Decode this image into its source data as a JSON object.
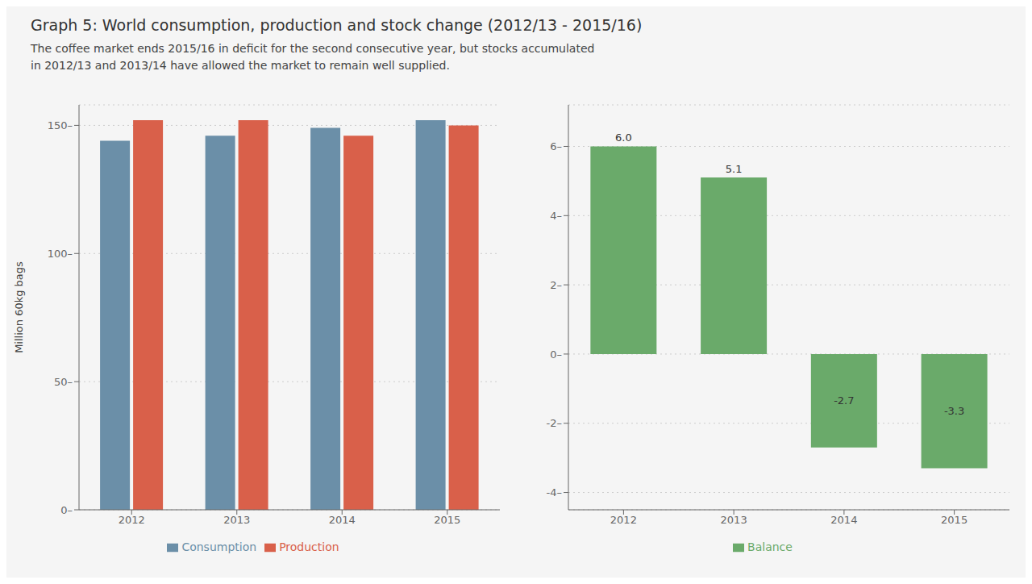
{
  "chart_data": [
    {
      "type": "bar",
      "title": "Graph 5: World consumption, production and stock change (2012/13 - 2015/16)",
      "subtitle": "The coffee market ends 2015/16 in deficit for the second consecutive year, but stocks accumulated\nin 2012/13 and 2013/14 have allowed the market to remain well supplied.",
      "categories": [
        "2012",
        "2013",
        "2014",
        "2015"
      ],
      "series": [
        {
          "name": "Consumption",
          "color": "#6b8fa8",
          "values": [
            144,
            146,
            149,
            152
          ]
        },
        {
          "name": "Production",
          "color": "#d9604a",
          "values": [
            152,
            152,
            146,
            150
          ]
        }
      ],
      "ylabel": "Million 60kg bags",
      "ylim": [
        0,
        158
      ],
      "yticks": [
        {
          "value": 0,
          "label": "0–"
        },
        {
          "value": 50,
          "label": "50–"
        },
        {
          "value": 100,
          "label": "100–"
        },
        {
          "value": 150,
          "label": "150–"
        }
      ],
      "grid": true,
      "legend": "bottom"
    },
    {
      "type": "bar",
      "categories": [
        "2012",
        "2013",
        "2014",
        "2015"
      ],
      "series": [
        {
          "name": "Balance",
          "color": "#6aaa6a",
          "values": [
            6.0,
            5.1,
            -2.7,
            -3.3
          ],
          "value_labels": [
            "6.0",
            "5.1",
            "-2.7",
            "-3.3"
          ]
        }
      ],
      "ylim": [
        -4.5,
        7.2
      ],
      "yticks": [
        {
          "value": -4,
          "label": "-4–"
        },
        {
          "value": -2,
          "label": "-2–"
        },
        {
          "value": 0,
          "label": "0–"
        },
        {
          "value": 2,
          "label": "2–"
        },
        {
          "value": 4,
          "label": "4–"
        },
        {
          "value": 6,
          "label": "6–"
        }
      ],
      "grid": true,
      "data_labels": true,
      "legend": "bottom"
    }
  ]
}
